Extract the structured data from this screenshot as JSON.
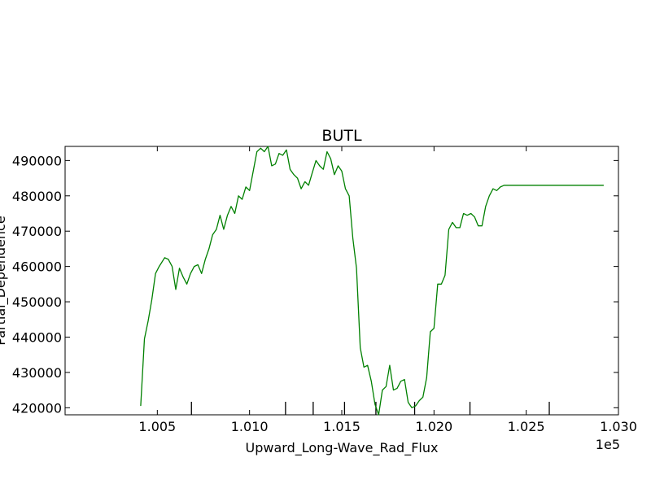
{
  "chart_data": {
    "type": "line",
    "title": "BUTL",
    "xlabel": "Upward_Long-Wave_Rad_Flux",
    "ylabel": "Partial_Dependence",
    "x_offset_label": "1e5",
    "xlim": [
      1.0,
      1.03
    ],
    "ylim": [
      418000,
      494000
    ],
    "xticks": [
      1.005,
      1.01,
      1.015,
      1.02,
      1.025,
      1.03
    ],
    "xtick_labels": [
      "1.005",
      "1.010",
      "1.015",
      "1.020",
      "1.025",
      "1.030"
    ],
    "yticks": [
      420000,
      430000,
      440000,
      450000,
      460000,
      470000,
      480000,
      490000
    ],
    "ytick_labels": [
      "420000",
      "430000",
      "440000",
      "450000",
      "460000",
      "470000",
      "480000",
      "490000"
    ],
    "rug_x": [
      1.00685,
      1.01195,
      1.01345,
      1.01515,
      1.01685,
      1.01895,
      1.02195,
      1.02625
    ],
    "series": [
      {
        "color": "#008000",
        "x": [
          1.0041,
          1.0043,
          1.0045,
          1.0047,
          1.0049,
          1.0051,
          1.0054,
          1.0056,
          1.0058,
          1.006,
          1.0062,
          1.0064,
          1.0066,
          1.0068,
          1.007,
          1.0072,
          1.0074,
          1.0076,
          1.0078,
          1.008,
          1.0082,
          1.0084,
          1.0086,
          1.0088,
          1.009,
          1.0092,
          1.0094,
          1.0096,
          1.0098,
          1.01,
          1.0102,
          1.0104,
          1.0106,
          1.0108,
          1.011,
          1.0112,
          1.0114,
          1.0116,
          1.0118,
          1.012,
          1.0122,
          1.0124,
          1.0126,
          1.0128,
          1.013,
          1.0132,
          1.0134,
          1.0136,
          1.0138,
          1.014,
          1.0142,
          1.0144,
          1.0146,
          1.0148,
          1.015,
          1.0152,
          1.0154,
          1.0156,
          1.0158,
          1.016,
          1.0162,
          1.0164,
          1.0166,
          1.0168,
          1.017,
          1.0172,
          1.0174,
          1.0176,
          1.0178,
          1.018,
          1.0182,
          1.0184,
          1.0186,
          1.0188,
          1.019,
          1.0192,
          1.0194,
          1.0196,
          1.0198,
          1.02,
          1.0202,
          1.0204,
          1.0206,
          1.0208,
          1.021,
          1.0212,
          1.0214,
          1.0216,
          1.0218,
          1.022,
          1.0222,
          1.0224,
          1.0226,
          1.0228,
          1.023,
          1.0232,
          1.0234,
          1.0236,
          1.0238,
          1.024,
          1.0242,
          1.0244,
          1.0246,
          1.0248,
          1.025,
          1.0252,
          1.0254,
          1.0256,
          1.0258,
          1.026,
          1.0262,
          1.0264,
          1.0266,
          1.0268,
          1.027,
          1.0272,
          1.0274,
          1.0276,
          1.0278,
          1.028,
          1.0282,
          1.0284,
          1.0286,
          1.0288,
          1.029,
          1.0292
        ],
        "y": [
          420500,
          439500,
          444500,
          450500,
          458000,
          460000,
          462500,
          462000,
          460000,
          453500,
          459500,
          457000,
          455000,
          458000,
          460000,
          460500,
          458000,
          462000,
          465000,
          469000,
          470500,
          474500,
          470500,
          474500,
          477000,
          475000,
          480000,
          479000,
          482500,
          481500,
          487000,
          492500,
          493500,
          492500,
          494000,
          488500,
          489000,
          492000,
          491500,
          493000,
          487500,
          486000,
          485000,
          482000,
          484000,
          483000,
          486500,
          490000,
          488500,
          487500,
          492500,
          490500,
          486000,
          488500,
          487000,
          482000,
          480000,
          468000,
          459500,
          437000,
          431500,
          432000,
          427500,
          421000,
          418000,
          425000,
          426000,
          432000,
          425000,
          425500,
          427500,
          428000,
          421500,
          420000,
          420500,
          422000,
          423000,
          428500,
          441500,
          442500,
          455000,
          455000,
          457500,
          470500,
          472500,
          471000,
          471000,
          475000,
          474500,
          475000,
          474000,
          471500,
          471500,
          477000,
          480000,
          482000,
          481500,
          482500,
          483000,
          483000,
          483000,
          483000,
          483000,
          483000,
          483000,
          483000,
          483000,
          483000,
          483000,
          483000,
          483000,
          483000,
          483000,
          483000,
          483000,
          483000,
          483000,
          483000,
          483000,
          483000,
          483000,
          483000,
          483000,
          483000,
          483000,
          483000
        ]
      }
    ]
  }
}
